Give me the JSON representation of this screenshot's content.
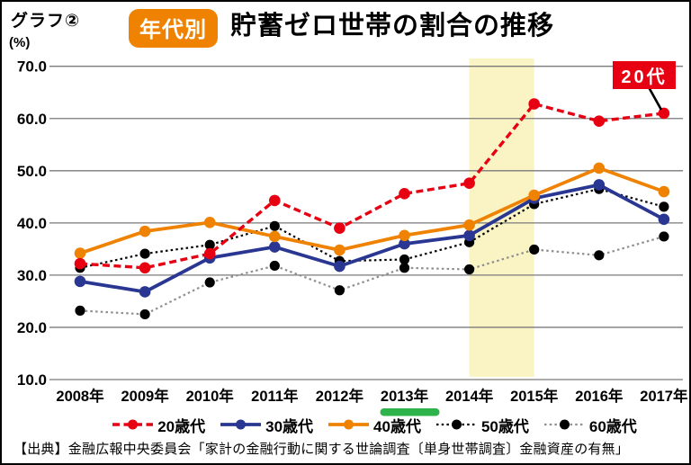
{
  "header": {
    "graph_label": "グラフ②",
    "badge": "年代別",
    "title": "貯蓄ゼロ世帯の割合の推移"
  },
  "source": "【出典】金融広報中央委員会「家計の金融行動に関する世論調査〔単身世帯調査〕金融資産の有無」",
  "colors": {
    "badge_orange": "#EF8200",
    "annotation_red": "#E60012",
    "highlight_band_yellow": "#FAF4C5",
    "underline_green": "#2DB34A",
    "gridline_gray": "#7A7A7A"
  },
  "chart_data": {
    "type": "line",
    "title": "年代別 貯蓄ゼロ世帯の割合の推移",
    "ylabel": "(%)",
    "ylim": [
      10.0,
      70.0
    ],
    "ytick_step": 10,
    "yticks": [
      "70.0",
      "60.0",
      "50.0",
      "40.0",
      "30.0",
      "20.0",
      "10.0"
    ],
    "grid": "horizontal",
    "legend_position": "bottom",
    "x": [
      "2008年",
      "2009年",
      "2010年",
      "2011年",
      "2012年",
      "2013年",
      "2014年",
      "2015年",
      "2016年",
      "2017年"
    ],
    "highlight_band": {
      "from": "2014年",
      "to": "2015年",
      "color": "#FAF4C5"
    },
    "underline": {
      "x": "2013年",
      "color": "#2DB34A"
    },
    "annotation": {
      "text": "20代",
      "target_x": "2017年",
      "target_series": "20歳代"
    },
    "series": [
      {
        "key": "20s",
        "name": "20歳代",
        "color": "#E60012",
        "style": "dashed",
        "values": [
          32.2,
          31.4,
          34.1,
          44.3,
          39.0,
          45.6,
          47.6,
          62.8,
          59.5,
          61.0
        ]
      },
      {
        "key": "30s",
        "name": "30歳代",
        "color": "#2A3792",
        "style": "solid",
        "values": [
          28.8,
          26.8,
          33.3,
          35.4,
          31.7,
          36.0,
          37.6,
          44.7,
          47.3,
          40.7
        ]
      },
      {
        "key": "40s",
        "name": "40歳代",
        "color": "#EF8200",
        "style": "solid",
        "values": [
          34.2,
          38.4,
          40.1,
          37.4,
          34.8,
          37.6,
          39.6,
          45.3,
          50.5,
          46.0
        ]
      },
      {
        "key": "50s",
        "name": "50歳代",
        "color": "#000000",
        "style": "dotted",
        "values": [
          31.4,
          34.1,
          35.8,
          39.4,
          32.7,
          33.0,
          36.3,
          43.6,
          46.5,
          43.1
        ]
      },
      {
        "key": "60s",
        "name": "60歳代",
        "color": "#8F8F8F",
        "style": "dotted",
        "marker_color": "#000000",
        "values": [
          23.2,
          22.5,
          28.6,
          31.8,
          27.1,
          31.4,
          31.1,
          34.9,
          33.8,
          37.4
        ]
      }
    ]
  }
}
